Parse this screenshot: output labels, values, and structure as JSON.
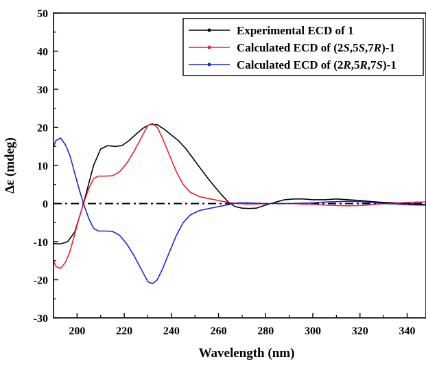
{
  "chart_data": {
    "type": "line",
    "xlabel": "Wavelength (nm)",
    "ylabel": "Δε (mdeg)",
    "xlim": [
      190,
      348
    ],
    "ylim": [
      -30,
      50
    ],
    "xticks": [
      200,
      220,
      240,
      260,
      280,
      300,
      320,
      340
    ],
    "yticks": [
      -30,
      -20,
      -10,
      0,
      10,
      20,
      30,
      40,
      50
    ],
    "grid": false,
    "legend": "top-right",
    "zero_line": {
      "y": 0,
      "style": "dash-dot",
      "color": "#000000"
    },
    "series": [
      {
        "name_parts": [
          {
            "t": "Experimental ECD of 1",
            "i": false
          }
        ],
        "color": "#000000",
        "points": [
          [
            190,
            -10.5
          ],
          [
            193,
            -10.6
          ],
          [
            196,
            -10
          ],
          [
            199,
            -7.5
          ],
          [
            202,
            -1.5
          ],
          [
            204,
            3
          ],
          [
            207,
            10
          ],
          [
            210,
            14.3
          ],
          [
            213,
            15.2
          ],
          [
            216,
            15
          ],
          [
            219,
            15.2
          ],
          [
            222,
            16.5
          ],
          [
            225,
            18.2
          ],
          [
            228,
            19.8
          ],
          [
            231,
            20.8
          ],
          [
            234,
            20.7
          ],
          [
            237,
            19.5
          ],
          [
            240,
            18
          ],
          [
            243,
            16.5
          ],
          [
            246,
            14.5
          ],
          [
            249,
            12
          ],
          [
            252,
            9.5
          ],
          [
            255,
            7
          ],
          [
            258,
            4.7
          ],
          [
            261,
            2.5
          ],
          [
            264,
            0.5
          ],
          [
            267,
            -0.8
          ],
          [
            270,
            -1.2
          ],
          [
            273,
            -1.3
          ],
          [
            276,
            -1.2
          ],
          [
            279,
            -0.6
          ],
          [
            282,
            0
          ],
          [
            285,
            0.5
          ],
          [
            288,
            1
          ],
          [
            292,
            1.2
          ],
          [
            296,
            1.2
          ],
          [
            300,
            1
          ],
          [
            305,
            1
          ],
          [
            310,
            1.2
          ],
          [
            315,
            1
          ],
          [
            320,
            0.8
          ],
          [
            325,
            0.5
          ],
          [
            330,
            0.3
          ],
          [
            335,
            0.2
          ],
          [
            340,
            0
          ],
          [
            345,
            -0.2
          ],
          [
            348,
            -0.3
          ]
        ]
      },
      {
        "name_parts": [
          {
            "t": "Calculated ECD of (2",
            "i": false
          },
          {
            "t": "S",
            "i": true
          },
          {
            "t": ",5",
            "i": false
          },
          {
            "t": "S",
            "i": true
          },
          {
            "t": ",7",
            "i": false
          },
          {
            "t": "R",
            "i": true
          },
          {
            "t": ")-1",
            "i": false
          }
        ],
        "color": "#e8202a",
        "points": [
          [
            190,
            -15
          ],
          [
            191,
            -16.5
          ],
          [
            193,
            -17
          ],
          [
            195,
            -15.5
          ],
          [
            197,
            -12.5
          ],
          [
            199,
            -8
          ],
          [
            201,
            -3.5
          ],
          [
            203,
            0.5
          ],
          [
            205,
            4
          ],
          [
            207,
            6.5
          ],
          [
            209,
            7.2
          ],
          [
            212,
            7.2
          ],
          [
            215,
            7.3
          ],
          [
            218,
            8.3
          ],
          [
            221,
            10.5
          ],
          [
            224,
            13.5
          ],
          [
            227,
            17
          ],
          [
            230,
            20.5
          ],
          [
            232,
            21
          ],
          [
            234,
            20
          ],
          [
            236,
            17.5
          ],
          [
            239,
            13
          ],
          [
            242,
            8.5
          ],
          [
            245,
            5
          ],
          [
            248,
            3
          ],
          [
            252,
            1.8
          ],
          [
            256,
            1.3
          ],
          [
            260,
            0.8
          ],
          [
            264,
            0.3
          ],
          [
            268,
            0
          ],
          [
            272,
            -0.1
          ],
          [
            276,
            -0.1
          ],
          [
            280,
            0
          ],
          [
            285,
            0
          ],
          [
            290,
            0
          ],
          [
            295,
            -0.1
          ],
          [
            300,
            -0.2
          ],
          [
            305,
            -0.4
          ],
          [
            310,
            -0.5
          ],
          [
            315,
            -0.6
          ],
          [
            320,
            -0.5
          ],
          [
            325,
            -0.3
          ],
          [
            330,
            0
          ],
          [
            335,
            0.1
          ],
          [
            340,
            0.3
          ],
          [
            345,
            0.4
          ],
          [
            348,
            0.4
          ]
        ]
      },
      {
        "name_parts": [
          {
            "t": "Calculated ECD of (2",
            "i": false
          },
          {
            "t": "R",
            "i": true
          },
          {
            "t": ",5",
            "i": false
          },
          {
            "t": "R",
            "i": true
          },
          {
            "t": ",7",
            "i": false
          },
          {
            "t": "S",
            "i": true
          },
          {
            "t": ")-1",
            "i": false
          }
        ],
        "color": "#1a22e8",
        "points": [
          [
            190,
            15
          ],
          [
            191,
            16.5
          ],
          [
            193,
            17.2
          ],
          [
            195,
            15.5
          ],
          [
            197,
            12.5
          ],
          [
            199,
            8
          ],
          [
            201,
            3.5
          ],
          [
            203,
            -0.5
          ],
          [
            205,
            -4
          ],
          [
            207,
            -6.5
          ],
          [
            209,
            -7.2
          ],
          [
            212,
            -7.2
          ],
          [
            215,
            -7.3
          ],
          [
            218,
            -8.3
          ],
          [
            221,
            -10.5
          ],
          [
            224,
            -13.5
          ],
          [
            227,
            -17
          ],
          [
            230,
            -20.5
          ],
          [
            232,
            -21
          ],
          [
            234,
            -20
          ],
          [
            236,
            -17.5
          ],
          [
            239,
            -13
          ],
          [
            242,
            -8.5
          ],
          [
            245,
            -5
          ],
          [
            248,
            -3
          ],
          [
            252,
            -1.8
          ],
          [
            256,
            -1.3
          ],
          [
            260,
            -0.8
          ],
          [
            264,
            -0.3
          ],
          [
            268,
            0.2
          ],
          [
            272,
            0.2
          ],
          [
            276,
            0.1
          ],
          [
            280,
            0
          ],
          [
            285,
            0
          ],
          [
            290,
            0
          ],
          [
            295,
            0.1
          ],
          [
            300,
            0.2
          ],
          [
            305,
            0.4
          ],
          [
            310,
            0.5
          ],
          [
            315,
            0.6
          ],
          [
            320,
            0.5
          ],
          [
            325,
            0.3
          ],
          [
            330,
            0
          ],
          [
            335,
            -0.1
          ],
          [
            340,
            -0.3
          ],
          [
            345,
            -0.4
          ],
          [
            348,
            -0.4
          ]
        ]
      }
    ]
  }
}
